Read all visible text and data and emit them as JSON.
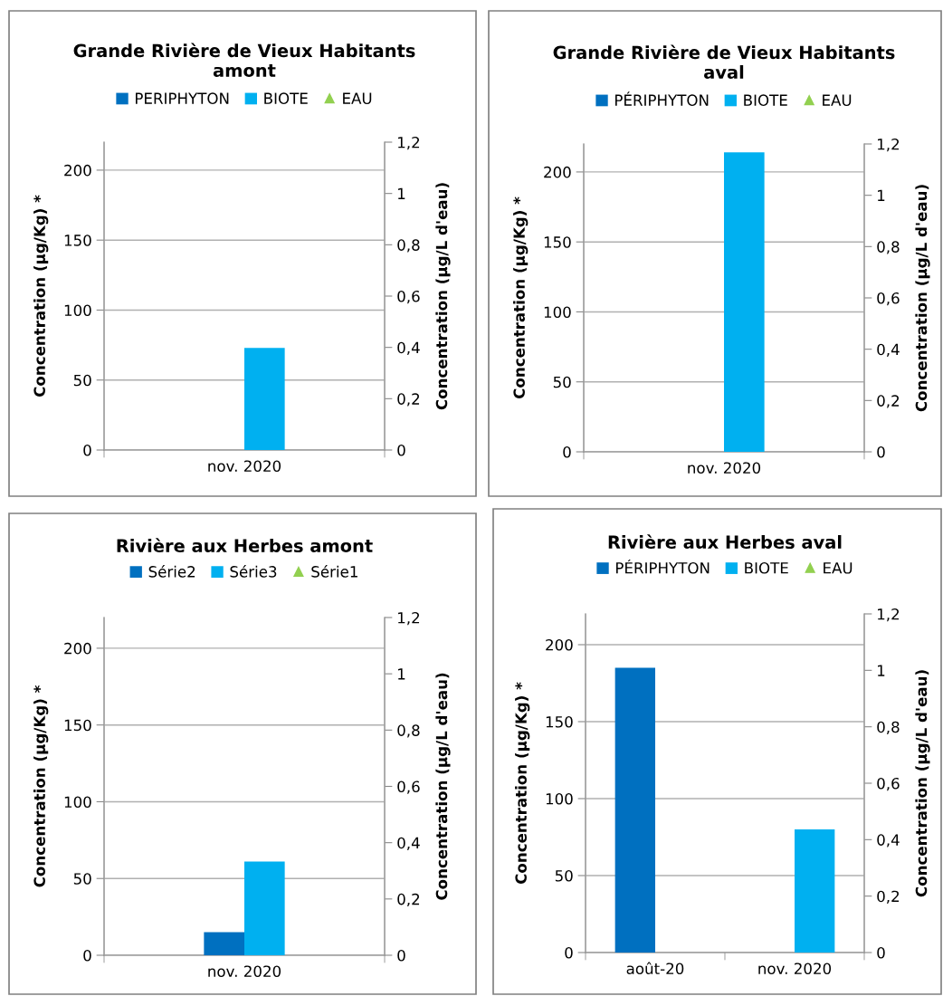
{
  "chart_data": [
    {
      "type": "bar",
      "title": "Grande Rivière de Vieux Habitants\namont",
      "categories": [
        "nov. 2020"
      ],
      "ylabel": "Concentration (µg/Kg) *",
      "y2label": "Concentration (µg/L d'eau)",
      "ylim": [
        0,
        220
      ],
      "yticks": [
        0,
        50,
        100,
        150,
        200
      ],
      "y2lim": [
        0,
        1.2
      ],
      "y2ticks": [
        0,
        {
          "value": 0.2,
          "label": "0,2"
        },
        {
          "value": 0.4,
          "label": "0,4"
        },
        {
          "value": 0.6,
          "label": "0,6"
        },
        {
          "value": 0.8,
          "label": "0,8"
        },
        1,
        {
          "value": 1.2,
          "label": "1,2"
        }
      ],
      "grid": "y",
      "legend": "top",
      "series": [
        {
          "name": "PERIPHYTON",
          "color": "#0070c0",
          "values": [
            null
          ]
        },
        {
          "name": "BIOTE",
          "color": "#00b0f0",
          "values": [
            73
          ]
        },
        {
          "name": "EAU",
          "color": "#92d050",
          "type": "scatter",
          "marker": "triangle",
          "values": [
            null
          ]
        }
      ]
    },
    {
      "type": "bar",
      "title": "Grande Rivière de Vieux Habitants\naval",
      "categories": [
        "nov. 2020"
      ],
      "ylabel": "Concentration (µg/Kg) *",
      "y2label": "Concentration (µg/L d'eau)",
      "ylim": [
        0,
        220
      ],
      "yticks": [
        0,
        50,
        100,
        150,
        200
      ],
      "y2lim": [
        0,
        1.2
      ],
      "y2ticks": [
        0,
        {
          "value": 0.2,
          "label": "0,2"
        },
        {
          "value": 0.4,
          "label": "0,4"
        },
        {
          "value": 0.6,
          "label": "0,6"
        },
        {
          "value": 0.8,
          "label": "0,8"
        },
        1,
        {
          "value": 1.2,
          "label": "1,2"
        }
      ],
      "grid": "y",
      "legend": "top",
      "series": [
        {
          "name": "PÉRIPHYTON",
          "color": "#0070c0",
          "values": [
            null
          ]
        },
        {
          "name": "BIOTE",
          "color": "#00b0f0",
          "values": [
            214
          ]
        },
        {
          "name": "EAU",
          "color": "#92d050",
          "type": "scatter",
          "marker": "triangle",
          "values": [
            null
          ]
        }
      ]
    },
    {
      "type": "bar",
      "title": "Rivière aux Herbes amont",
      "categories": [
        "nov. 2020"
      ],
      "ylabel": "Concentration (µg/Kg) *",
      "y2label": "Concentration (µg/L d'eau)",
      "ylim": [
        0,
        220
      ],
      "yticks": [
        0,
        50,
        100,
        150,
        200
      ],
      "y2lim": [
        0,
        1.2
      ],
      "y2ticks": [
        0,
        {
          "value": 0.2,
          "label": "0,2"
        },
        {
          "value": 0.4,
          "label": "0,4"
        },
        {
          "value": 0.6,
          "label": "0,6"
        },
        {
          "value": 0.8,
          "label": "0,8"
        },
        1,
        {
          "value": 1.2,
          "label": "1,2"
        }
      ],
      "grid": "y",
      "legend": "top",
      "series": [
        {
          "name": "Série2",
          "color": "#0070c0",
          "values": [
            15
          ]
        },
        {
          "name": "Série3",
          "color": "#00b0f0",
          "values": [
            61
          ]
        },
        {
          "name": "Série1",
          "color": "#92d050",
          "type": "scatter",
          "marker": "triangle",
          "values": [
            null
          ]
        }
      ]
    },
    {
      "type": "bar",
      "title": "Rivière aux Herbes aval",
      "categories": [
        "août-20",
        "nov. 2020"
      ],
      "ylabel": "Concentration (µg/Kg) *",
      "y2label": "Concentration (µg/L d'eau)",
      "ylim": [
        0,
        220
      ],
      "yticks": [
        0,
        50,
        100,
        150,
        200
      ],
      "y2lim": [
        0,
        1.2
      ],
      "y2ticks": [
        0,
        {
          "value": 0.2,
          "label": "0,2"
        },
        {
          "value": 0.4,
          "label": "0,4"
        },
        {
          "value": 0.6,
          "label": "0,6"
        },
        {
          "value": 0.8,
          "label": "0,8"
        },
        1,
        {
          "value": 1.2,
          "label": "1,2"
        }
      ],
      "grid": "y",
      "legend": "top",
      "series": [
        {
          "name": "PÉRIPHYTON",
          "color": "#0070c0",
          "values": [
            185,
            null
          ]
        },
        {
          "name": "BIOTE",
          "color": "#00b0f0",
          "values": [
            null,
            80
          ]
        },
        {
          "name": "EAU",
          "color": "#92d050",
          "type": "scatter",
          "marker": "triangle",
          "values": [
            null,
            null
          ]
        }
      ]
    }
  ]
}
